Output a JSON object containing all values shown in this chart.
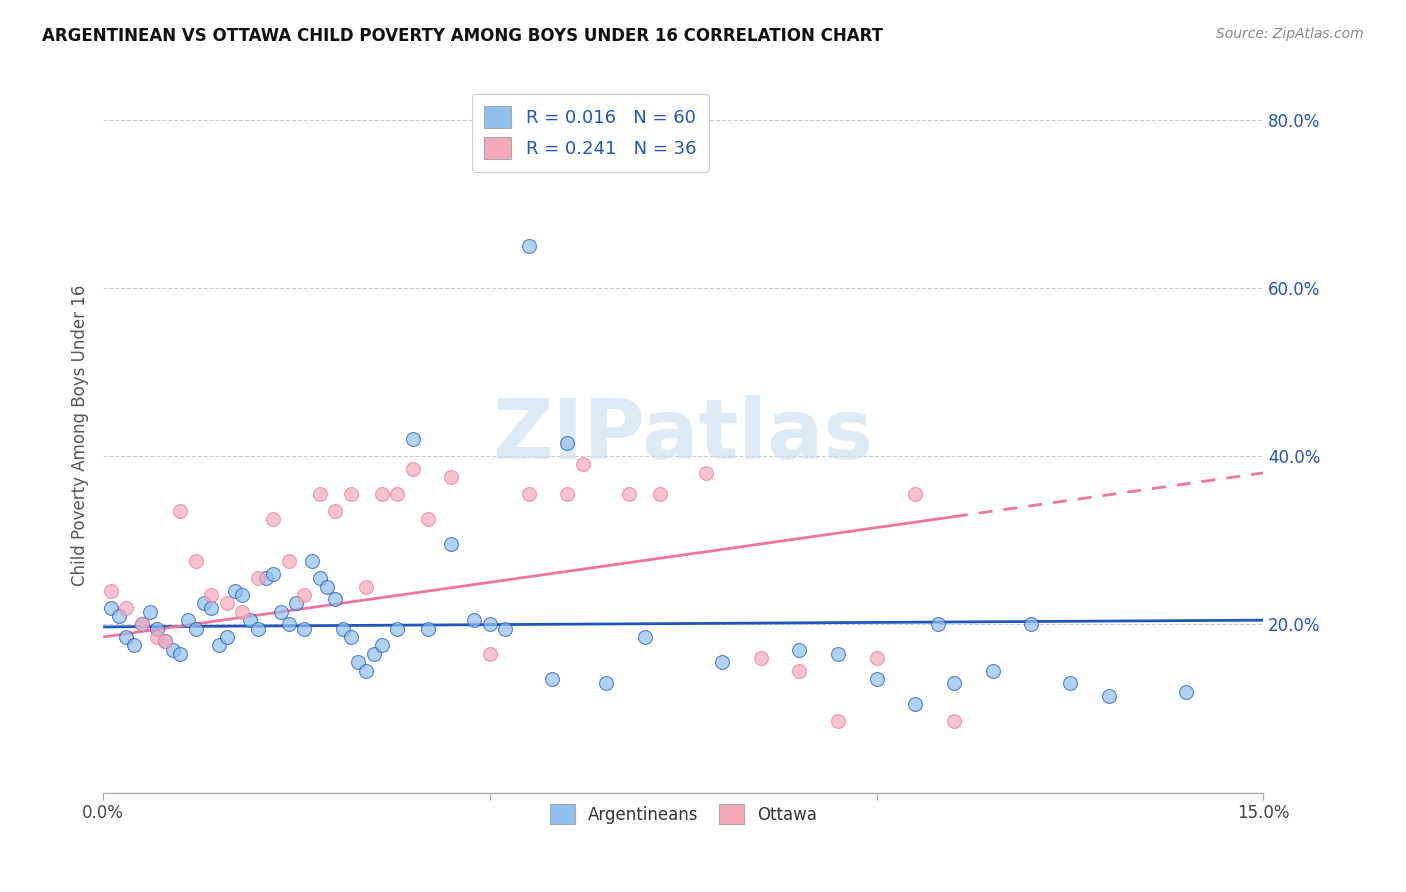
{
  "title": "ARGENTINEAN VS OTTAWA CHILD POVERTY AMONG BOYS UNDER 16 CORRELATION CHART",
  "source": "Source: ZipAtlas.com",
  "ylabel": "Child Poverty Among Boys Under 16",
  "xlim": [
    0.0,
    0.15
  ],
  "ylim": [
    0.0,
    0.85
  ],
  "yticks_right": [
    0.2,
    0.4,
    0.6,
    0.8
  ],
  "yticklabels_right": [
    "20.0%",
    "40.0%",
    "60.0%",
    "80.0%"
  ],
  "blue_scatter_color": "#90C0EE",
  "pink_scatter_color": "#F4AABB",
  "blue_line_color": "#2255BB",
  "pink_line_color": "#EE7799",
  "legend_label1": "Argentineans",
  "legend_label2": "Ottawa",
  "watermark": "ZIPatlas",
  "argentinean_x": [
    0.001,
    0.002,
    0.003,
    0.004,
    0.005,
    0.006,
    0.007,
    0.008,
    0.009,
    0.01,
    0.011,
    0.012,
    0.013,
    0.014,
    0.015,
    0.016,
    0.017,
    0.018,
    0.019,
    0.02,
    0.021,
    0.022,
    0.023,
    0.024,
    0.025,
    0.026,
    0.027,
    0.028,
    0.029,
    0.03,
    0.031,
    0.032,
    0.033,
    0.034,
    0.035,
    0.036,
    0.038,
    0.04,
    0.042,
    0.045,
    0.048,
    0.05,
    0.052,
    0.055,
    0.058,
    0.06,
    0.065,
    0.07,
    0.08,
    0.09,
    0.095,
    0.1,
    0.105,
    0.108,
    0.11,
    0.115,
    0.12,
    0.125,
    0.13,
    0.14
  ],
  "argentinean_y": [
    0.22,
    0.21,
    0.185,
    0.175,
    0.2,
    0.215,
    0.195,
    0.18,
    0.17,
    0.165,
    0.205,
    0.195,
    0.225,
    0.22,
    0.175,
    0.185,
    0.24,
    0.235,
    0.205,
    0.195,
    0.255,
    0.26,
    0.215,
    0.2,
    0.225,
    0.195,
    0.275,
    0.255,
    0.245,
    0.23,
    0.195,
    0.185,
    0.155,
    0.145,
    0.165,
    0.175,
    0.195,
    0.42,
    0.195,
    0.295,
    0.205,
    0.2,
    0.195,
    0.65,
    0.135,
    0.415,
    0.13,
    0.185,
    0.155,
    0.17,
    0.165,
    0.135,
    0.105,
    0.2,
    0.13,
    0.145,
    0.2,
    0.13,
    0.115,
    0.12
  ],
  "ottawa_x": [
    0.001,
    0.003,
    0.005,
    0.007,
    0.008,
    0.01,
    0.012,
    0.014,
    0.016,
    0.018,
    0.02,
    0.022,
    0.024,
    0.026,
    0.028,
    0.03,
    0.032,
    0.034,
    0.036,
    0.038,
    0.04,
    0.042,
    0.045,
    0.05,
    0.055,
    0.06,
    0.062,
    0.068,
    0.072,
    0.078,
    0.085,
    0.09,
    0.095,
    0.1,
    0.105,
    0.11
  ],
  "ottawa_y": [
    0.24,
    0.22,
    0.2,
    0.185,
    0.18,
    0.335,
    0.275,
    0.235,
    0.225,
    0.215,
    0.255,
    0.325,
    0.275,
    0.235,
    0.355,
    0.335,
    0.355,
    0.245,
    0.355,
    0.355,
    0.385,
    0.325,
    0.375,
    0.165,
    0.355,
    0.355,
    0.39,
    0.355,
    0.355,
    0.38,
    0.16,
    0.145,
    0.085,
    0.16,
    0.355,
    0.085
  ],
  "blue_trend_y0": 0.197,
  "blue_trend_y1": 0.205,
  "pink_trend_y0": 0.185,
  "pink_trend_y1": 0.38
}
